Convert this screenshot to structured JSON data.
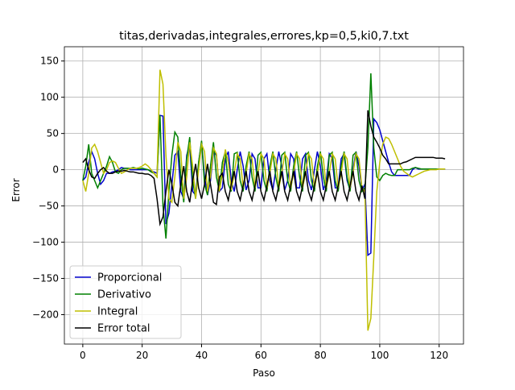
{
  "chart_data": {
    "type": "line",
    "title": "titas,derivadas,integrales,errores,kp=0,5,ki0,7.txt",
    "x_label": "Paso",
    "y_label": "Error",
    "x": [
      0,
      1,
      2,
      3,
      4,
      5,
      6,
      7,
      8,
      9,
      10,
      11,
      12,
      13,
      14,
      15,
      16,
      17,
      18,
      19,
      20,
      21,
      22,
      23,
      24,
      25,
      26,
      27,
      28,
      29,
      30,
      31,
      32,
      33,
      34,
      35,
      36,
      37,
      38,
      39,
      40,
      41,
      42,
      43,
      44,
      45,
      46,
      47,
      48,
      49,
      50,
      51,
      52,
      53,
      54,
      55,
      56,
      57,
      58,
      59,
      60,
      61,
      62,
      63,
      64,
      65,
      66,
      67,
      68,
      69,
      70,
      71,
      72,
      73,
      74,
      75,
      76,
      77,
      78,
      79,
      80,
      81,
      82,
      83,
      84,
      85,
      86,
      87,
      88,
      89,
      90,
      91,
      92,
      93,
      94,
      95,
      96,
      97,
      98,
      99,
      100,
      101,
      102,
      103,
      104,
      105,
      106,
      107,
      108,
      109,
      110,
      111,
      112,
      113,
      114,
      115,
      116,
      117,
      118,
      119,
      120,
      121,
      122
    ],
    "series": [
      {
        "name": "Proporcional",
        "color": "#0000cc",
        "values": [
          -15,
          -10,
          10,
          25,
          15,
          -5,
          -20,
          -15,
          -5,
          -5,
          -3,
          -2,
          0,
          3,
          2,
          2,
          0,
          0,
          0,
          0,
          0,
          0,
          0,
          -2,
          -3,
          -5,
          75,
          74,
          -75,
          -60,
          -20,
          20,
          25,
          -30,
          -40,
          20,
          35,
          -30,
          -35,
          10,
          38,
          -10,
          -35,
          -15,
          25,
          20,
          -30,
          -25,
          15,
          25,
          -15,
          -30,
          0,
          25,
          5,
          -28,
          -15,
          22,
          15,
          -25,
          -25,
          15,
          22,
          -15,
          -28,
          0,
          25,
          5,
          -28,
          -15,
          22,
          15,
          -25,
          -25,
          15,
          22,
          -15,
          -28,
          0,
          25,
          5,
          -28,
          -15,
          22,
          15,
          -25,
          -25,
          15,
          22,
          -15,
          -28,
          0,
          25,
          5,
          -28,
          -20,
          -118,
          -115,
          70,
          65,
          55,
          40,
          25,
          10,
          -3,
          -8,
          -8,
          -8,
          -8,
          -8,
          -8,
          0,
          3,
          1,
          1,
          1,
          1,
          1,
          1,
          1,
          1,
          1,
          1
        ]
      },
      {
        "name": "Derivativo",
        "color": "#008000",
        "values": [
          -15,
          5,
          35,
          -5,
          -15,
          -25,
          -15,
          -5,
          5,
          18,
          10,
          -3,
          -5,
          0,
          2,
          2,
          2,
          3,
          2,
          1,
          2,
          1,
          0,
          -3,
          -5,
          -10,
          75,
          -50,
          -95,
          -30,
          20,
          52,
          45,
          -10,
          -45,
          15,
          45,
          -15,
          -40,
          10,
          40,
          -20,
          -35,
          5,
          38,
          -10,
          -30,
          10,
          25,
          -20,
          -30,
          22,
          24,
          -15,
          -30,
          5,
          25,
          -10,
          -30,
          20,
          24,
          -15,
          -30,
          5,
          25,
          -10,
          -30,
          20,
          24,
          -15,
          -30,
          5,
          25,
          -10,
          -30,
          20,
          24,
          -15,
          -30,
          5,
          25,
          -10,
          -30,
          20,
          24,
          -15,
          -30,
          5,
          25,
          -10,
          -30,
          20,
          24,
          -15,
          -30,
          -25,
          30,
          133,
          30,
          -10,
          -15,
          -8,
          -5,
          -7,
          -8,
          -8,
          0,
          0,
          0,
          0,
          0,
          2,
          3,
          2,
          1,
          1,
          1,
          1,
          1,
          1,
          1,
          1,
          1
        ]
      },
      {
        "name": "Integral",
        "color": "#bfbf00",
        "values": [
          -15,
          -30,
          -5,
          30,
          35,
          25,
          10,
          -5,
          0,
          10,
          12,
          10,
          2,
          -5,
          -3,
          0,
          2,
          2,
          2,
          3,
          5,
          8,
          5,
          0,
          -5,
          -10,
          138,
          118,
          20,
          -40,
          -45,
          -10,
          38,
          25,
          -40,
          -10,
          38,
          5,
          -40,
          0,
          35,
          25,
          -30,
          -10,
          30,
          22,
          -30,
          -5,
          28,
          10,
          -28,
          -5,
          22,
          15,
          -25,
          -5,
          22,
          15,
          -25,
          -5,
          22,
          15,
          -25,
          -5,
          22,
          15,
          -25,
          -5,
          22,
          15,
          -25,
          -5,
          22,
          15,
          -25,
          -5,
          22,
          15,
          -25,
          -5,
          22,
          15,
          -25,
          -5,
          22,
          15,
          -25,
          -5,
          22,
          15,
          -25,
          -5,
          22,
          15,
          -25,
          -30,
          -222,
          -205,
          -120,
          -30,
          10,
          35,
          45,
          43,
          35,
          25,
          15,
          5,
          -2,
          -5,
          -8,
          -10,
          -8,
          -6,
          -4,
          -2,
          -1,
          0,
          0,
          0,
          1,
          1,
          1
        ]
      },
      {
        "name": "Error total",
        "color": "#000000",
        "values": [
          10,
          15,
          0,
          -10,
          -12,
          -5,
          0,
          3,
          -2,
          -5,
          -5,
          -3,
          -2,
          -2,
          -1,
          -2,
          -3,
          -3,
          -4,
          -5,
          -5,
          -6,
          -6,
          -8,
          -12,
          -40,
          -75,
          -65,
          -30,
          0,
          -20,
          -45,
          -50,
          -20,
          5,
          -30,
          -45,
          -15,
          8,
          -25,
          -40,
          -20,
          8,
          -20,
          -45,
          -48,
          -10,
          -5,
          -30,
          -42,
          -20,
          -2,
          -30,
          -42,
          -22,
          -2,
          -30,
          -42,
          -22,
          -2,
          -30,
          -42,
          -22,
          -2,
          -30,
          -42,
          -22,
          -2,
          -30,
          -42,
          -22,
          -2,
          -30,
          -42,
          -22,
          -2,
          -30,
          -42,
          -22,
          -2,
          -30,
          -42,
          -22,
          -2,
          -30,
          -42,
          -22,
          -2,
          -30,
          -42,
          -22,
          -2,
          -30,
          -42,
          -22,
          -40,
          82,
          60,
          45,
          38,
          30,
          20,
          15,
          8,
          8,
          8,
          8,
          8,
          10,
          11,
          13,
          15,
          17,
          17,
          17,
          17,
          17,
          17,
          17,
          16,
          16,
          16,
          15
        ]
      }
    ],
    "xlim": [
      -6.2,
      128.2
    ],
    "ylim": [
      -240.6,
      169.7
    ],
    "xticks": [
      0,
      20,
      40,
      60,
      80,
      100,
      120
    ],
    "yticks": [
      {
        "value": -200,
        "label": "−200"
      },
      {
        "value": -150,
        "label": "−150"
      },
      {
        "value": -100,
        "label": "−100"
      },
      {
        "value": -50,
        "label": "−50"
      },
      0,
      50,
      100,
      150
    ],
    "grid": true,
    "legend": "lower left"
  }
}
